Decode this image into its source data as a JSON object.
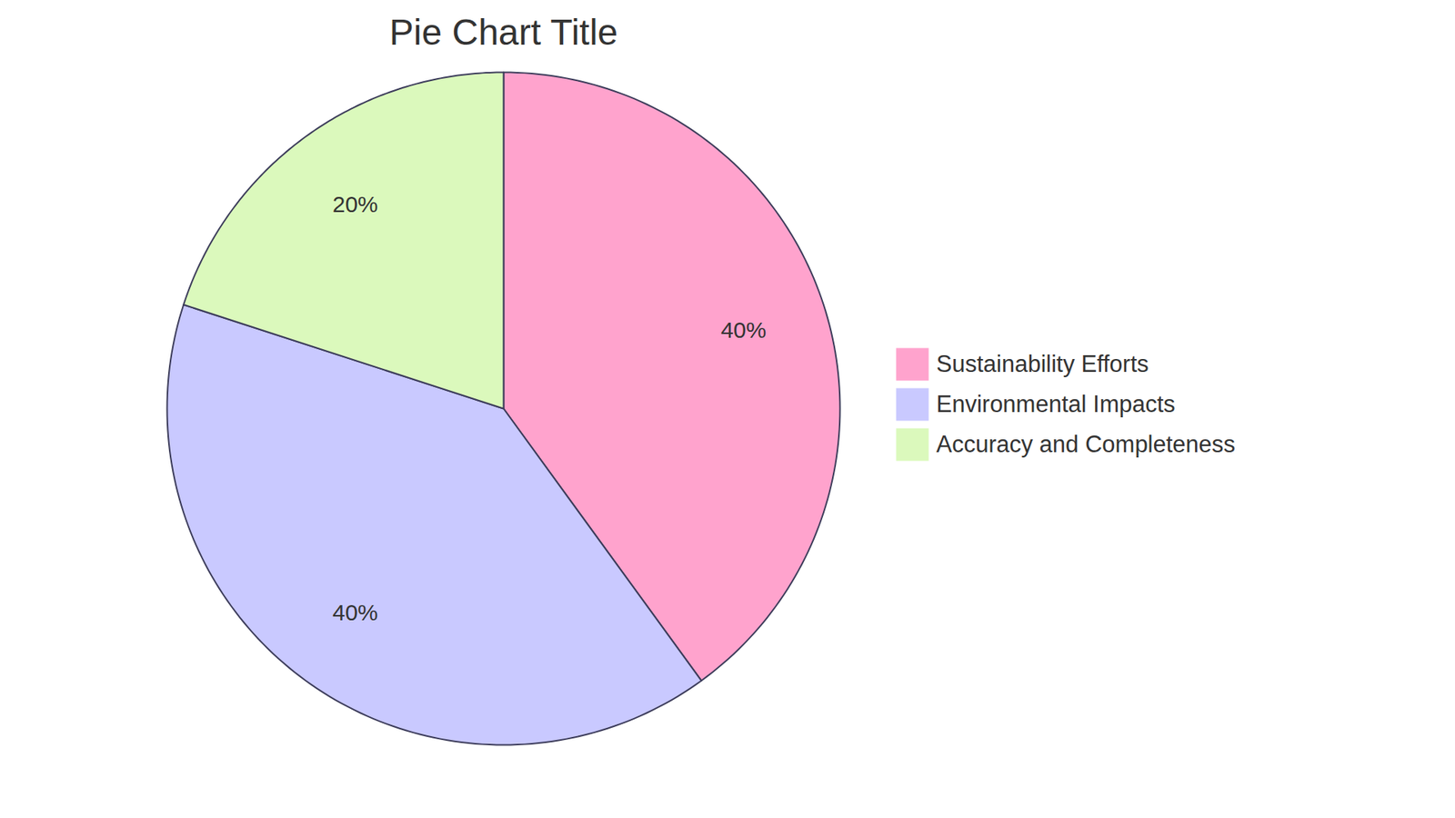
{
  "chart_data": {
    "type": "pie",
    "title": "Pie Chart Title",
    "categories": [
      "Sustainability Efforts",
      "Environmental Impacts",
      "Accuracy and Completeness"
    ],
    "values": [
      40,
      40,
      20
    ],
    "value_labels": [
      "40%",
      "40%",
      "20%"
    ],
    "colors": [
      "#ffa3cd",
      "#c9c9ff",
      "#dbf9bc"
    ],
    "data_labels": true,
    "legend": "right"
  }
}
